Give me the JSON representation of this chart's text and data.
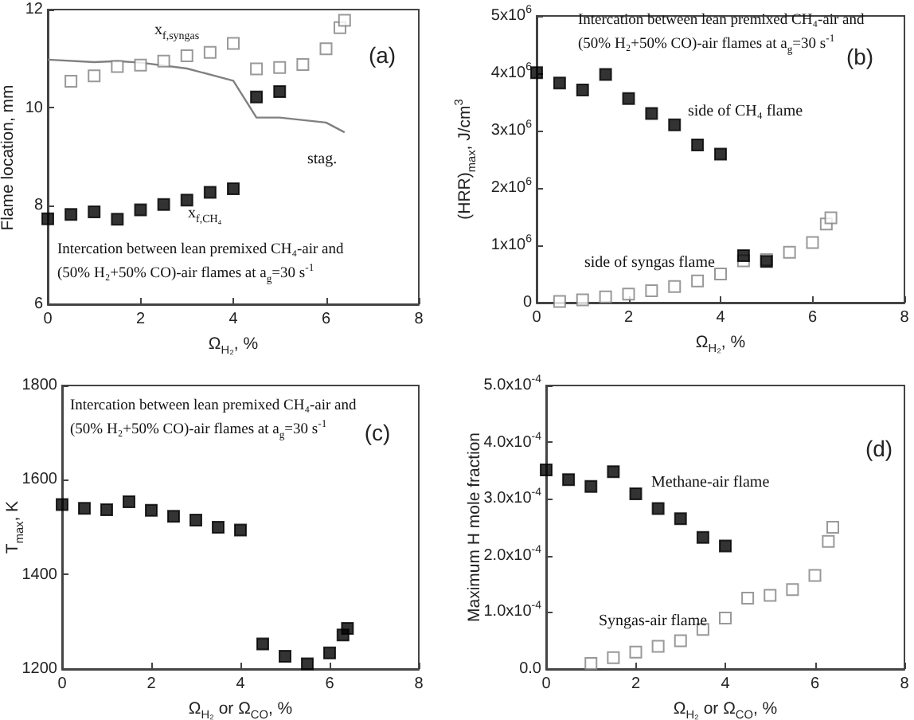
{
  "chart_data": [
    {
      "type": "scatter",
      "title": "(a)",
      "subtitle": "Intercation between lean premixed CH₄-air and (50% H₂+50% CO)-air flames at a$_{g}$=30 s$^{-1}$",
      "xlabel": "Ω$_{H₂}$, %",
      "ylabel": "Flame location, mm",
      "xlim": [
        0,
        8
      ],
      "xticks": [
        0,
        2,
        4,
        6,
        8
      ],
      "ylim": [
        6,
        12
      ],
      "yticks": [
        6,
        8,
        10,
        12
      ],
      "series": [
        {
          "x": [
            0.5,
            1,
            1.5,
            2,
            2.5,
            3,
            3.5,
            4,
            4.5,
            5,
            5.5,
            6,
            6.3,
            6.4
          ],
          "values": [
            10.54,
            10.65,
            10.84,
            10.87,
            10.95,
            11.06,
            11.13,
            11.31,
            10.79,
            10.82,
            10.88,
            11.2,
            11.63,
            11.78
          ],
          "color": "#808080",
          "marker": "square-open"
        },
        {
          "x": [
            0,
            0.5,
            1,
            1.5,
            2,
            2.5,
            3,
            3.5,
            4,
            4.5,
            5
          ],
          "values": [
            7.74,
            7.83,
            7.88,
            7.73,
            7.92,
            8.03,
            8.12,
            8.28,
            8.35,
            10.22,
            10.33
          ],
          "color": "#000000",
          "marker": "square"
        },
        {
          "type": "line",
          "x": [
            0,
            1,
            1.5,
            2,
            3,
            4,
            4.5,
            5,
            6,
            6.4
          ],
          "values": [
            10.98,
            10.93,
            10.95,
            10.92,
            10.8,
            10.55,
            9.8,
            9.8,
            9.7,
            9.5
          ],
          "color": "#808080",
          "marker": "none"
        }
      ],
      "annotations": [
        "x$_{f,syngas}$",
        "stag.",
        "x$_{f,CH₄}$"
      ]
    },
    {
      "type": "scatter",
      "title": "(b)",
      "subtitle": "Intercation between lean premixed CH₄-air and (50% H₂+50% CO)-air flames at a$_{g}$=30 s$^{-1}$",
      "xlabel": "Ω$_{H₂}$, %",
      "ylabel": "(HRR)$_{max}$, J/cm$^{3}$",
      "xlim": [
        0,
        8
      ],
      "xticks": [
        0,
        2,
        4,
        6,
        8
      ],
      "ylim": [
        0,
        5000000
      ],
      "yticks": [
        0,
        {
          "value": 1000000,
          "label": "1x10$^{6}$"
        },
        {
          "value": 2000000,
          "label": "2x10$^{6}$"
        },
        {
          "value": 3000000,
          "label": "3x10$^{6}$"
        },
        {
          "value": 4000000,
          "label": "4x10$^{6}$"
        },
        {
          "value": 5000000,
          "label": "5x10$^{6}$"
        }
      ],
      "series": [
        {
          "x": [
            0.5,
            1,
            1.5,
            2,
            2.5,
            3,
            3.5,
            4,
            4.5,
            5,
            5.5,
            6,
            6.3,
            6.4
          ],
          "values": [
            20000,
            50000,
            100000,
            150000,
            210000,
            280000,
            380000,
            500000,
            730000,
            750000,
            880000,
            1050000,
            1370000,
            1480000
          ],
          "color": "#808080",
          "marker": "square-open"
        },
        {
          "x": [
            0,
            0.5,
            1,
            1.5,
            2,
            2.5,
            3,
            3.5,
            4,
            4.5,
            5
          ],
          "values": [
            4010000,
            3830000,
            3710000,
            3980000,
            3560000,
            3300000,
            3100000,
            2750000,
            2590000,
            820000,
            720000
          ],
          "color": "#000000",
          "marker": "square"
        }
      ],
      "annotations": [
        "side of CH₄ flame",
        "side of syngas flame"
      ]
    },
    {
      "type": "scatter",
      "title": "(c)",
      "subtitle": "Intercation between lean premixed CH₄-air and (50% H₂+50% CO)-air flames at a$_{g}$=30 s$^{-1}$",
      "xlabel": "Ω$_{H₂}$ or Ω$_{CO}$, %",
      "ylabel": "T$_{max}$, K",
      "xlim": [
        0,
        8
      ],
      "xticks": [
        0,
        2,
        4,
        6,
        8
      ],
      "ylim": [
        1200,
        1800
      ],
      "yticks": [
        1200,
        1400,
        1600,
        1800
      ],
      "series": [
        {
          "x": [
            0,
            0.5,
            1,
            1.5,
            2,
            2.5,
            3,
            3.5,
            4,
            4.5,
            5,
            5.5,
            6,
            6.3,
            6.4
          ],
          "values": [
            1548,
            1540,
            1537,
            1554,
            1536,
            1523,
            1515,
            1500,
            1494,
            1253,
            1227,
            1211,
            1234,
            1272,
            1286
          ],
          "color": "#000000",
          "marker": "square"
        }
      ]
    },
    {
      "type": "scatter",
      "title": "(d)",
      "xlabel": "Ω$_{H₂}$ or Ω$_{CO}$, %",
      "ylabel": "Maximum H mole fraction",
      "xlim": [
        0,
        8
      ],
      "xticks": [
        0,
        2,
        4,
        6,
        8
      ],
      "ylim": [
        0,
        0.0005
      ],
      "yticks": [
        {
          "value": 0,
          "label": "0.0"
        },
        {
          "value": 0.0001,
          "label": "1.0x10$^{-4}$"
        },
        {
          "value": 0.0002,
          "label": "2.0x10$^{-4}$"
        },
        {
          "value": 0.0003,
          "label": "3.0x10$^{-4}$"
        },
        {
          "value": 0.0004,
          "label": "4.0x10$^{-4}$"
        },
        {
          "value": 0.0005,
          "label": "5.0x10$^{-4}$"
        }
      ],
      "series": [
        {
          "x": [
            0,
            0.5,
            1,
            1.5,
            2,
            2.5,
            3,
            3.5,
            4
          ],
          "values": [
            0.000351,
            0.000334,
            0.000322,
            0.000348,
            0.000309,
            0.000283,
            0.000265,
            0.000232,
            0.000217
          ],
          "color": "#000000",
          "marker": "square"
        },
        {
          "x": [
            1,
            1.5,
            2,
            2.5,
            3,
            3.5,
            4,
            4.5,
            5,
            5.5,
            6,
            6.3,
            6.4
          ],
          "values": [
            1e-05,
            2e-05,
            3e-05,
            4e-05,
            5e-05,
            7e-05,
            9e-05,
            0.000125,
            0.00013,
            0.00014,
            0.000165,
            0.000225,
            0.00025
          ],
          "color": "#808080",
          "marker": "square-open"
        }
      ],
      "annotations": [
        "Methane-air flame",
        "Syngas-air flame"
      ]
    }
  ]
}
